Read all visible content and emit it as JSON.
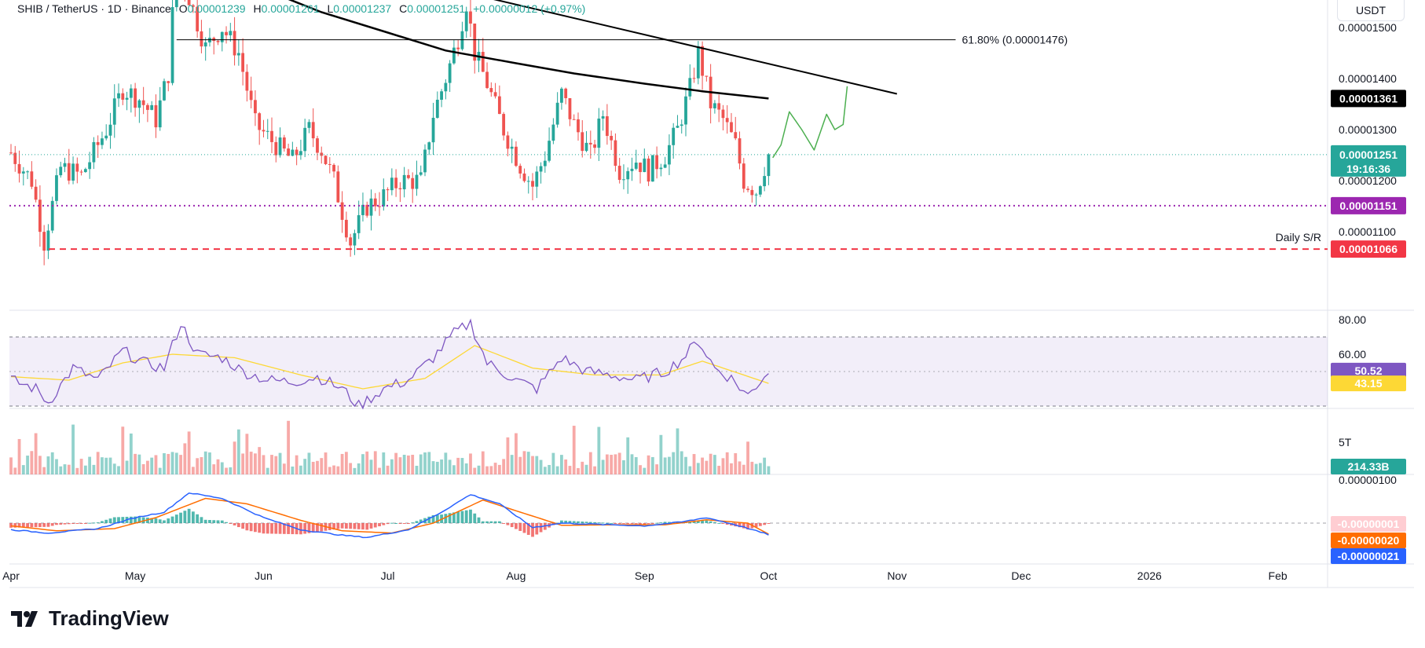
{
  "legend": {
    "symbol": "SHIB / TetherUS · 1D · Binance",
    "o_label": "O",
    "o_value": "0.00001239",
    "h_label": "H",
    "h_value": "0.00001261",
    "l_label": "L",
    "l_value": "0.00001237",
    "c_label": "C",
    "c_value": "0.00001251",
    "change": "+0.00000012 (+0.97%)"
  },
  "currency_button": "USDT",
  "brand": "TradingView",
  "colors": {
    "up": "#26a69a",
    "down": "#ef5350",
    "purple": "#9c27b0",
    "red": "#f23645",
    "green_projection": "#4caf50",
    "rsi": "#7e57c2",
    "rsi_ma": "#fdd835",
    "macd": "#2962ff",
    "signal": "#ff6d00"
  },
  "chart_data": [
    {
      "type": "candlestick",
      "panel": "price",
      "x": [
        "2025-04-01",
        "2025-05-01",
        "2025-06-01",
        "2025-07-01",
        "2025-08-01",
        "2025-09-01",
        "2025-10-01",
        "2025-11-01",
        "2025-12-01",
        "2026-01-01",
        "2026-02-01"
      ],
      "x_labels": [
        "Apr",
        "May",
        "Jun",
        "Jul",
        "Aug",
        "Sep",
        "Oct",
        "Nov",
        "Dec",
        "2026",
        "Feb"
      ],
      "y_ticks": [
        "0.00001500",
        "0.00001400",
        "0.00001300",
        "0.00001200",
        "0.00001100"
      ],
      "y_tick_values": [
        1.5e-05,
        1.4e-05,
        1.3e-05,
        1.2e-05,
        1.1e-05
      ],
      "price_path": [
        [
          "2025-04-01",
          1.255e-05
        ],
        [
          "2025-04-06",
          1.2e-05
        ],
        [
          "2025-04-09",
          1.08e-05
        ],
        [
          "2025-04-13",
          1.225e-05
        ],
        [
          "2025-04-18",
          1.21e-05
        ],
        [
          "2025-04-24",
          1.3e-05
        ],
        [
          "2025-04-28",
          1.38e-05
        ],
        [
          "2025-05-02",
          1.36e-05
        ],
        [
          "2025-05-06",
          1.32e-05
        ],
        [
          "2025-05-09",
          1.41e-05
        ],
        [
          "2025-05-11",
          1.64e-05
        ],
        [
          "2025-05-14",
          1.56e-05
        ],
        [
          "2025-05-18",
          1.46e-05
        ],
        [
          "2025-05-22",
          1.5e-05
        ],
        [
          "2025-05-26",
          1.45e-05
        ],
        [
          "2025-05-30",
          1.31e-05
        ],
        [
          "2025-06-04",
          1.27e-05
        ],
        [
          "2025-06-08",
          1.24e-05
        ],
        [
          "2025-06-12",
          1.3e-05
        ],
        [
          "2025-06-15",
          1.26e-05
        ],
        [
          "2025-06-18",
          1.2e-05
        ],
        [
          "2025-06-22",
          1.08e-05
        ],
        [
          "2025-06-26",
          1.15e-05
        ],
        [
          "2025-06-30",
          1.17e-05
        ],
        [
          "2025-07-04",
          1.2e-05
        ],
        [
          "2025-07-09",
          1.2e-05
        ],
        [
          "2025-07-12",
          1.33e-05
        ],
        [
          "2025-07-15",
          1.4e-05
        ],
        [
          "2025-07-18",
          1.48e-05
        ],
        [
          "2025-07-20",
          1.55e-05
        ],
        [
          "2025-07-22",
          1.45e-05
        ],
        [
          "2025-07-25",
          1.39e-05
        ],
        [
          "2025-07-29",
          1.3e-05
        ],
        [
          "2025-08-02",
          1.23e-05
        ],
        [
          "2025-08-05",
          1.19e-05
        ],
        [
          "2025-08-08",
          1.25e-05
        ],
        [
          "2025-08-12",
          1.37e-05
        ],
        [
          "2025-08-15",
          1.31e-05
        ],
        [
          "2025-08-19",
          1.25e-05
        ],
        [
          "2025-08-22",
          1.33e-05
        ],
        [
          "2025-08-26",
          1.22e-05
        ],
        [
          "2025-08-30",
          1.24e-05
        ],
        [
          "2025-09-02",
          1.22e-05
        ],
        [
          "2025-09-06",
          1.25e-05
        ],
        [
          "2025-09-09",
          1.3e-05
        ],
        [
          "2025-09-12",
          1.38e-05
        ],
        [
          "2025-09-14",
          1.45e-05
        ],
        [
          "2025-09-17",
          1.35e-05
        ],
        [
          "2025-09-20",
          1.32e-05
        ],
        [
          "2025-09-23",
          1.27e-05
        ],
        [
          "2025-09-25",
          1.2e-05
        ],
        [
          "2025-09-28",
          1.18e-05
        ],
        [
          "2025-10-01",
          1.251e-05
        ]
      ],
      "sma200": [
        [
          "2025-05-01",
          1.66e-05
        ],
        [
          "2025-05-15",
          1.625e-05
        ],
        [
          "2025-06-01",
          1.575e-05
        ],
        [
          "2025-06-15",
          1.53e-05
        ],
        [
          "2025-07-01",
          1.49e-05
        ],
        [
          "2025-07-15",
          1.455e-05
        ],
        [
          "2025-08-01",
          1.43e-05
        ],
        [
          "2025-08-15",
          1.41e-05
        ],
        [
          "2025-09-01",
          1.39e-05
        ],
        [
          "2025-09-15",
          1.375e-05
        ],
        [
          "2025-10-01",
          1.361e-05
        ]
      ],
      "trendline": {
        "start": [
          "2025-05-01",
          1.72e-05
        ],
        "end": [
          "2025-11-01",
          1.37e-05
        ]
      },
      "fib_level": {
        "label": "61.80% (0.00001476)",
        "value": 1.476e-05,
        "from": "2025-05-11",
        "to": "2025-10-31"
      },
      "support_151": 1.151e-05,
      "support_066": {
        "label": "Daily S/R",
        "value": 1.066e-05
      },
      "projection": [
        [
          "2025-10-02",
          1.245e-05
        ],
        [
          "2025-10-04",
          1.27e-05
        ],
        [
          "2025-10-06",
          1.335e-05
        ],
        [
          "2025-10-09",
          1.3e-05
        ],
        [
          "2025-10-12",
          1.26e-05
        ],
        [
          "2025-10-15",
          1.33e-05
        ],
        [
          "2025-10-17",
          1.3e-05
        ],
        [
          "2025-10-19",
          1.31e-05
        ],
        [
          "2025-10-20",
          1.385e-05
        ]
      ],
      "tags": {
        "sma": "0.00001361",
        "current": "0.00001251",
        "countdown": "19:16:36",
        "support_151": "0.00001151",
        "support_066": "0.00001066"
      }
    },
    {
      "type": "line",
      "panel": "rsi",
      "y_ticks": [
        "80.00",
        "60.00"
      ],
      "y_tick_values": [
        80,
        60
      ],
      "band": [
        30,
        70
      ],
      "mid": 50,
      "rsi": [
        [
          "2025-04-01",
          45
        ],
        [
          "2025-04-07",
          40
        ],
        [
          "2025-04-10",
          32
        ],
        [
          "2025-04-16",
          52
        ],
        [
          "2025-04-22",
          45
        ],
        [
          "2025-04-28",
          62
        ],
        [
          "2025-05-03",
          55
        ],
        [
          "2025-05-08",
          52
        ],
        [
          "2025-05-12",
          78
        ],
        [
          "2025-05-16",
          60
        ],
        [
          "2025-05-22",
          58
        ],
        [
          "2025-05-27",
          50
        ],
        [
          "2025-06-02",
          45
        ],
        [
          "2025-06-08",
          44
        ],
        [
          "2025-06-14",
          47
        ],
        [
          "2025-06-20",
          40
        ],
        [
          "2025-06-24",
          30
        ],
        [
          "2025-06-30",
          40
        ],
        [
          "2025-07-06",
          45
        ],
        [
          "2025-07-12",
          58
        ],
        [
          "2025-07-17",
          72
        ],
        [
          "2025-07-21",
          78
        ],
        [
          "2025-07-25",
          55
        ],
        [
          "2025-08-01",
          45
        ],
        [
          "2025-08-06",
          40
        ],
        [
          "2025-08-12",
          58
        ],
        [
          "2025-08-18",
          50
        ],
        [
          "2025-08-24",
          48
        ],
        [
          "2025-08-30",
          45
        ],
        [
          "2025-09-06",
          50
        ],
        [
          "2025-09-10",
          57
        ],
        [
          "2025-09-14",
          68
        ],
        [
          "2025-09-18",
          52
        ],
        [
          "2025-09-22",
          46
        ],
        [
          "2025-09-26",
          36
        ],
        [
          "2025-10-01",
          50.52
        ]
      ],
      "rsi_ma": [
        [
          "2025-04-01",
          47
        ],
        [
          "2025-04-15",
          45
        ],
        [
          "2025-04-28",
          55
        ],
        [
          "2025-05-10",
          60
        ],
        [
          "2025-05-25",
          58
        ],
        [
          "2025-06-10",
          48
        ],
        [
          "2025-06-25",
          40
        ],
        [
          "2025-07-10",
          46
        ],
        [
          "2025-07-22",
          65
        ],
        [
          "2025-08-05",
          52
        ],
        [
          "2025-08-20",
          48
        ],
        [
          "2025-09-05",
          48
        ],
        [
          "2025-09-15",
          56
        ],
        [
          "2025-09-25",
          48
        ],
        [
          "2025-10-01",
          43.15
        ]
      ],
      "tags": {
        "rsi": "50.52",
        "rsi_ma": "43.15"
      }
    },
    {
      "type": "bar",
      "panel": "volume",
      "y_ticks": [
        "5T"
      ],
      "y_tick_values": [
        5
      ],
      "latest": "214.33B"
    },
    {
      "type": "line",
      "panel": "macd",
      "y_ticks": [
        "0.00000100"
      ],
      "y_tick_values": [
        1
      ],
      "macd": [
        [
          "2025-04-01",
          -0.12
        ],
        [
          "2025-04-10",
          -0.18
        ],
        [
          "2025-04-22",
          -0.1
        ],
        [
          "2025-05-01",
          0.1
        ],
        [
          "2025-05-08",
          0.2
        ],
        [
          "2025-05-14",
          0.55
        ],
        [
          "2025-05-22",
          0.45
        ],
        [
          "2025-06-01",
          0.1
        ],
        [
          "2025-06-10",
          -0.12
        ],
        [
          "2025-06-20",
          -0.22
        ],
        [
          "2025-06-26",
          -0.26
        ],
        [
          "2025-07-06",
          -0.12
        ],
        [
          "2025-07-14",
          0.2
        ],
        [
          "2025-07-21",
          0.52
        ],
        [
          "2025-07-28",
          0.35
        ],
        [
          "2025-08-05",
          -0.08
        ],
        [
          "2025-08-12",
          0.0
        ],
        [
          "2025-08-20",
          -0.02
        ],
        [
          "2025-09-01",
          -0.05
        ],
        [
          "2025-09-10",
          0.02
        ],
        [
          "2025-09-16",
          0.1
        ],
        [
          "2025-09-24",
          -0.05
        ],
        [
          "2025-10-01",
          -0.21
        ]
      ],
      "signal": [
        [
          "2025-04-01",
          -0.05
        ],
        [
          "2025-04-12",
          -0.14
        ],
        [
          "2025-04-26",
          -0.1
        ],
        [
          "2025-05-06",
          0.1
        ],
        [
          "2025-05-18",
          0.45
        ],
        [
          "2025-05-28",
          0.35
        ],
        [
          "2025-06-10",
          0.05
        ],
        [
          "2025-06-20",
          -0.14
        ],
        [
          "2025-07-02",
          -0.18
        ],
        [
          "2025-07-12",
          0.0
        ],
        [
          "2025-07-24",
          0.42
        ],
        [
          "2025-08-02",
          0.2
        ],
        [
          "2025-08-12",
          -0.04
        ],
        [
          "2025-08-25",
          -0.03
        ],
        [
          "2025-09-06",
          -0.03
        ],
        [
          "2025-09-16",
          0.06
        ],
        [
          "2025-09-26",
          0.0
        ],
        [
          "2025-10-01",
          -0.2
        ]
      ],
      "tags": {
        "histogram": "-0.00000001",
        "signal": "-0.00000020",
        "macd": "-0.00000021"
      }
    }
  ]
}
